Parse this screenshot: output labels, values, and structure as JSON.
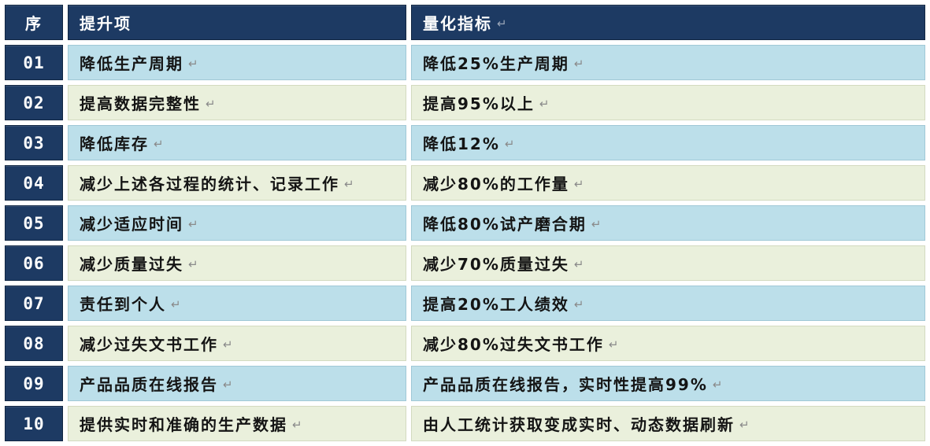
{
  "table": {
    "return_mark": "↵",
    "colors": {
      "header_bg": "#1d3a63",
      "header_text": "#ffffff",
      "row_blue": "#bcdfea",
      "row_cream": "#eaf0dc",
      "body_text": "#141414",
      "mark_gray": "#8a8a8a",
      "page_bg": "#ffffff"
    },
    "columns": {
      "seq": "序",
      "item": "提升项",
      "metric": "量化指标"
    },
    "rows": [
      {
        "no": "01",
        "item": "降低生产周期",
        "metric": "降低25%生产周期"
      },
      {
        "no": "02",
        "item": "提高数据完整性",
        "metric": "提高95%以上"
      },
      {
        "no": "03",
        "item": "降低库存",
        "metric": "降低12%"
      },
      {
        "no": "04",
        "item": "减少上述各过程的统计、记录工作",
        "metric": "减少80%的工作量"
      },
      {
        "no": "05",
        "item": "减少适应时间",
        "metric": "降低80%试产磨合期"
      },
      {
        "no": "06",
        "item": "减少质量过失",
        "metric": "减少70%质量过失"
      },
      {
        "no": "07",
        "item": "责任到个人",
        "metric": "提高20%工人绩效"
      },
      {
        "no": "08",
        "item": "减少过失文书工作",
        "metric": "减少80%过失文书工作"
      },
      {
        "no": "09",
        "item": "产品品质在线报告",
        "metric": "产品品质在线报告，实时性提高99%"
      },
      {
        "no": "10",
        "item": "提供实时和准确的生产数据",
        "metric": "由人工统计获取变成实时、动态数据刷新"
      }
    ]
  }
}
